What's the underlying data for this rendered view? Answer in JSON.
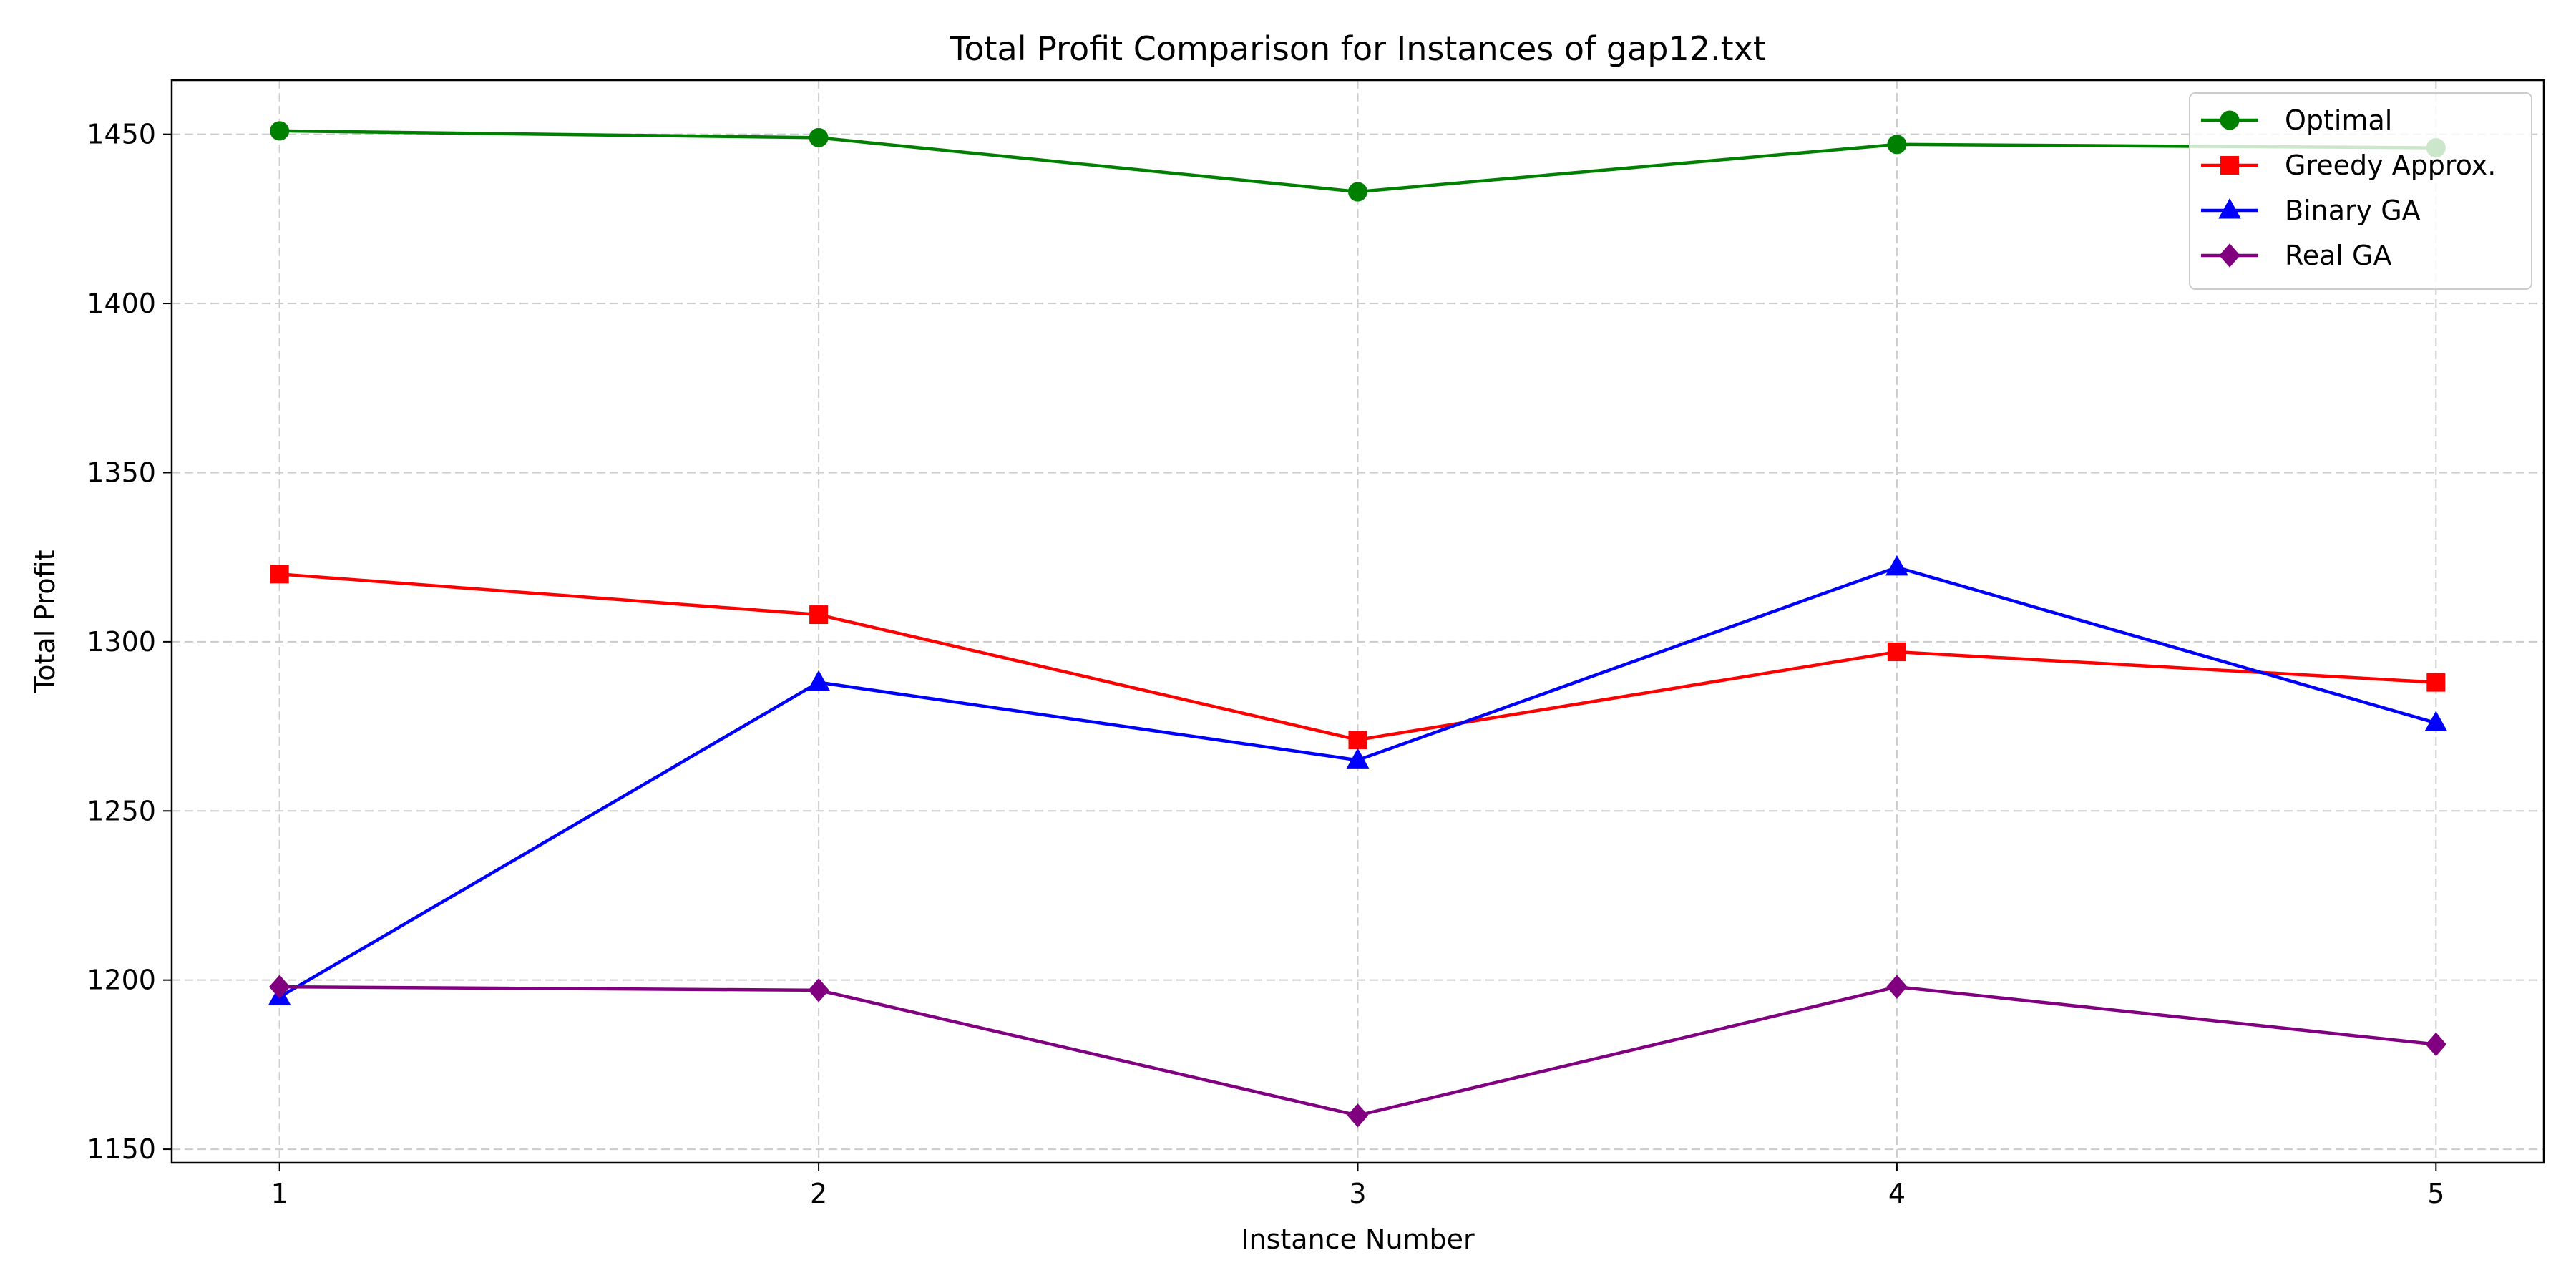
{
  "chart_data": {
    "type": "line",
    "title": "Total Profit Comparison for Instances of gap12.txt",
    "xlabel": "Instance Number",
    "ylabel": "Total Profit",
    "x": [
      1,
      2,
      3,
      4,
      5
    ],
    "xticks": [
      "1",
      "2",
      "3",
      "4",
      "5"
    ],
    "yticks": [
      "1150",
      "1200",
      "1250",
      "1300",
      "1350",
      "1400",
      "1450"
    ],
    "xlim": [
      0.8,
      5.2
    ],
    "ylim": [
      1146,
      1466
    ],
    "grid": true,
    "grid_style": "dashed",
    "legend_position": "top-right",
    "series": [
      {
        "name": "Optimal",
        "values": [
          1451,
          1449,
          1433,
          1447,
          1446
        ],
        "color": "#008000",
        "marker": "circle"
      },
      {
        "name": "Greedy Approx.",
        "values": [
          1320,
          1308,
          1271,
          1297,
          1288
        ],
        "color": "#ff0000",
        "marker": "square"
      },
      {
        "name": "Binary GA",
        "values": [
          1195,
          1288,
          1265,
          1322,
          1276
        ],
        "color": "#0000ff",
        "marker": "triangle"
      },
      {
        "name": "Real GA",
        "values": [
          1198,
          1197,
          1160,
          1198,
          1181
        ],
        "color": "#800080",
        "marker": "diamond"
      }
    ]
  }
}
